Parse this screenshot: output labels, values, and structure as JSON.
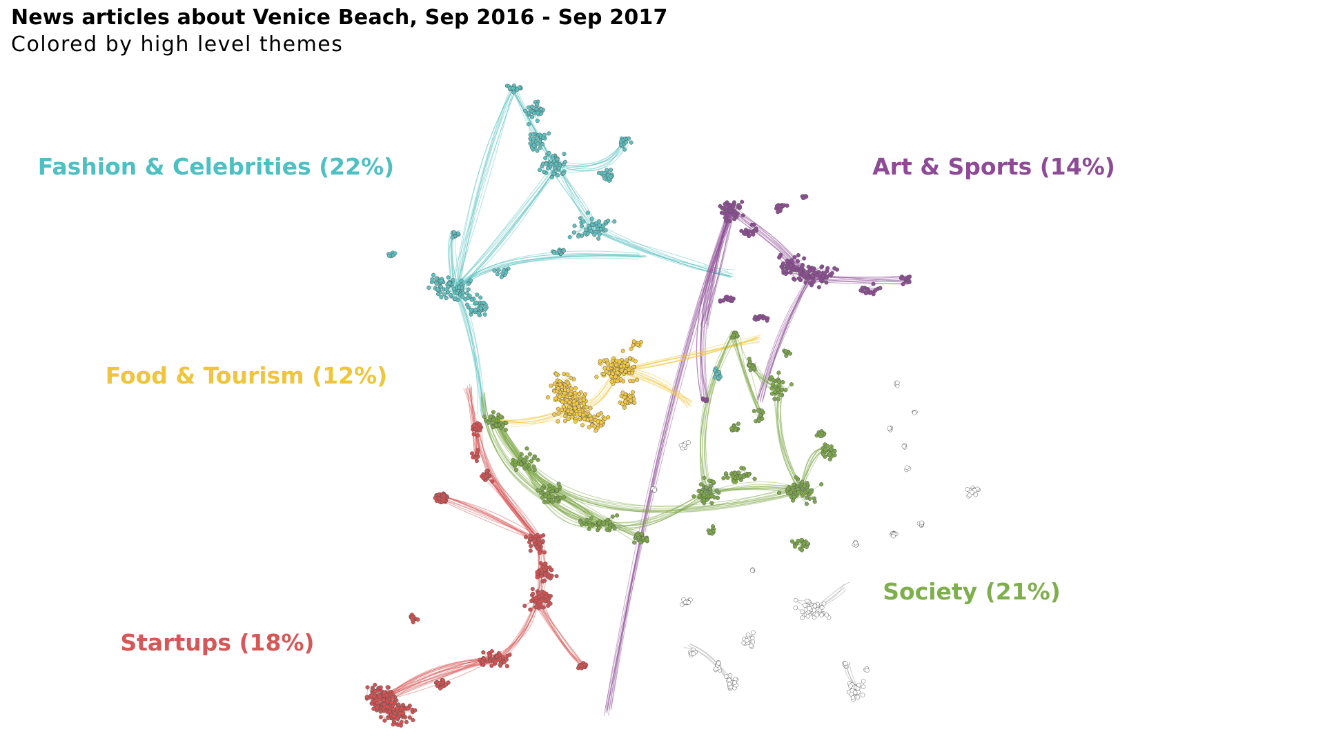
{
  "header": {
    "title": "News articles about Venice Beach, Sep 2016 - Sep 2017",
    "subtitle": "Colored by high level themes"
  },
  "colors": {
    "fashion": "#5cc1c0",
    "art": "#8f4e96",
    "food": "#f2c947",
    "society": "#7ea94a",
    "startups": "#d65252",
    "other": "#bdbdbd"
  },
  "clusters": [
    {
      "id": "fashion",
      "label": "Fashion & Celebrities (22%)",
      "color": "#4fc0c2"
    },
    {
      "id": "art",
      "label": "Art & Sports (14%)",
      "color": "#8e4a96"
    },
    {
      "id": "food",
      "label": "Food & Tourism (12%)",
      "color": "#efc53b"
    },
    {
      "id": "society",
      "label": "Society (21%)",
      "color": "#7faf4c"
    },
    {
      "id": "startups",
      "label": "Startups (18%)",
      "color": "#d65757"
    }
  ]
}
